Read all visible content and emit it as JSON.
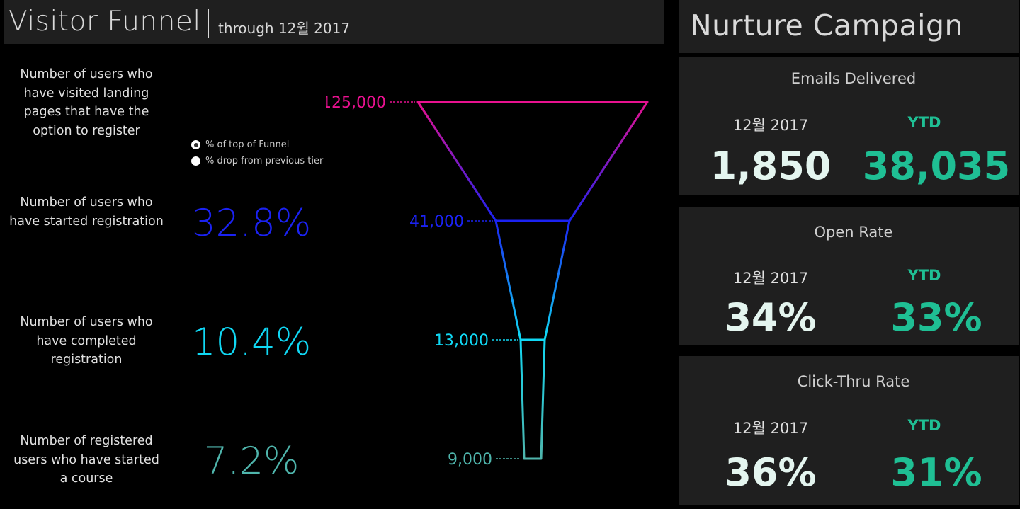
{
  "funnel_header": {
    "title": "Visitor Funnel",
    "subtitle": "through 12월 2017"
  },
  "tiers": [
    {
      "label": "Number of users who have visited landing pages that have the option to register",
      "pct": ""
    },
    {
      "label": "Number of users who have started registration",
      "pct": "32.8%"
    },
    {
      "label": "Number of users who have completed registration",
      "pct": "10.4%"
    },
    {
      "label": "Number of registered users who have started a course",
      "pct": "7.2%"
    }
  ],
  "radio_options": {
    "top_of_funnel": "% of top of Funnel",
    "drop_previous": "% drop from previous tier",
    "selected": "top_of_funnel"
  },
  "colors": {
    "tier1": "#e8118f",
    "tier2": "#1b22f2",
    "tier3": "#10d8f4",
    "tier4": "#4fb5ac",
    "kpi_ytd": "#1fbf94"
  },
  "chart_data": {
    "type": "funnel",
    "values": [
      125000,
      41000,
      13000,
      9000
    ],
    "value_labels": [
      "125,000",
      "41,000",
      "13,000",
      "9,000"
    ],
    "percent_of_top": [
      "",
      "32.8%",
      "10.4%",
      "7.2%"
    ]
  },
  "nurture": {
    "title": "Nurture Campaign",
    "cards": [
      {
        "title": "Emails Delivered",
        "month_label": "12월 2017",
        "ytd_label": "YTD",
        "month_value": "1,850",
        "ytd_value": "38,035"
      },
      {
        "title": "Open Rate",
        "month_label": "12월 2017",
        "ytd_label": "YTD",
        "month_value": "34%",
        "ytd_value": "33%"
      },
      {
        "title": "Click-Thru Rate",
        "month_label": "12월 2017",
        "ytd_label": "YTD",
        "month_value": "36%",
        "ytd_value": "31%"
      }
    ]
  }
}
